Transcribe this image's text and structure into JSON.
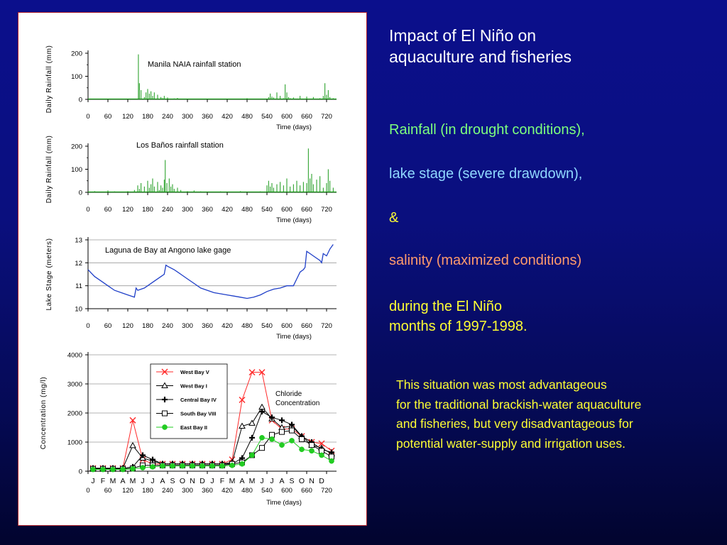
{
  "slide": {
    "title": "Impact of El Niño on\naquaculture and fisheries",
    "line_rainfall": "Rainfall (in drought conditions),",
    "line_lake": "lake stage (severe drawdown),",
    "line_amp": "&",
    "line_salinity": "salinity (maximized conditions)",
    "line_during": "during the El Niño\nmonths of  1997-1998.",
    "body_note": "This situation was most advantageous\nfor the traditional brackish-water aquaculture\nand fisheries, but very disadvantageous for\npotential water-supply and irrigation uses.",
    "colors": {
      "title": "#ffffff",
      "rainfall": "#7dff7d",
      "lake": "#8fd8ff",
      "yellow": "#ffff33",
      "salinity": "#ff9a6c",
      "panel_border": "#b0202a"
    }
  },
  "chart_data": [
    {
      "type": "line",
      "title": "Manila NAIA rainfall station",
      "ylabel": "Daily Rainfall (mm)",
      "xlabel": "Time (days)",
      "xlim": [
        0,
        750
      ],
      "ylim": [
        0,
        200
      ],
      "xticks": [
        "0",
        "60",
        "120",
        "180",
        "240",
        "300",
        "360",
        "420",
        "480",
        "540",
        "600",
        "660",
        "720"
      ],
      "yticks": [
        "0",
        "100",
        "200"
      ],
      "color": "#1a9a1a",
      "series": [
        {
          "x": [
            0,
            20,
            40,
            60,
            80,
            100,
            120,
            140,
            150,
            152,
            155,
            160,
            170,
            175,
            180,
            185,
            190,
            195,
            200,
            210,
            220,
            225,
            230,
            240,
            250,
            260,
            270,
            280,
            300,
            320,
            340,
            360,
            380,
            400,
            420,
            440,
            460,
            480,
            500,
            520,
            540,
            545,
            550,
            555,
            560,
            570,
            580,
            590,
            595,
            600,
            605,
            610,
            620,
            640,
            660,
            680,
            700,
            710,
            715,
            720,
            725,
            730,
            740
          ],
          "y": [
            0,
            0,
            1,
            0,
            2,
            0,
            1,
            0,
            3,
            195,
            70,
            40,
            10,
            30,
            45,
            25,
            35,
            15,
            30,
            20,
            10,
            5,
            15,
            8,
            2,
            4,
            6,
            2,
            1,
            3,
            0,
            2,
            1,
            0,
            0,
            2,
            1,
            5,
            3,
            1,
            2,
            10,
            25,
            12,
            8,
            30,
            15,
            5,
            65,
            30,
            10,
            5,
            8,
            15,
            12,
            10,
            5,
            15,
            70,
            20,
            40,
            10,
            5
          ]
        }
      ]
    },
    {
      "type": "line",
      "title": "Los Baños rainfall station",
      "ylabel": "Daily Rainfall (mm)",
      "xlabel": "Time (days)",
      "xlim": [
        0,
        750
      ],
      "ylim": [
        0,
        200
      ],
      "xticks": [
        "0",
        "60",
        "120",
        "180",
        "240",
        "300",
        "360",
        "420",
        "480",
        "540",
        "600",
        "660",
        "720"
      ],
      "yticks": [
        "0",
        "100",
        "200"
      ],
      "color": "#1a9a1a",
      "series": [
        {
          "x": [
            0,
            20,
            40,
            60,
            80,
            100,
            120,
            140,
            150,
            155,
            160,
            170,
            180,
            185,
            190,
            195,
            200,
            210,
            215,
            220,
            225,
            230,
            233,
            238,
            245,
            250,
            255,
            260,
            270,
            280,
            300,
            320,
            340,
            360,
            380,
            400,
            420,
            440,
            460,
            480,
            500,
            520,
            540,
            545,
            550,
            555,
            560,
            570,
            580,
            590,
            600,
            610,
            620,
            630,
            640,
            650,
            660,
            665,
            670,
            675,
            680,
            690,
            700,
            710,
            720,
            725,
            730,
            740
          ],
          "y": [
            2,
            5,
            3,
            8,
            4,
            2,
            5,
            10,
            30,
            15,
            40,
            25,
            50,
            20,
            35,
            60,
            25,
            45,
            10,
            30,
            20,
            55,
            140,
            40,
            60,
            25,
            35,
            15,
            20,
            10,
            5,
            8,
            4,
            3,
            2,
            4,
            2,
            3,
            5,
            2,
            3,
            4,
            30,
            50,
            25,
            40,
            20,
            35,
            45,
            30,
            60,
            25,
            35,
            50,
            30,
            45,
            40,
            190,
            60,
            80,
            35,
            55,
            70,
            20,
            40,
            100,
            50,
            20
          ]
        }
      ]
    },
    {
      "type": "line",
      "title": "Laguna de Bay at Angono lake gage",
      "ylabel": "Lake Stage (meters)",
      "xlabel": "Time (days)",
      "xlim": [
        0,
        750
      ],
      "ylim": [
        10,
        13
      ],
      "xticks": [
        "0",
        "60",
        "120",
        "180",
        "240",
        "300",
        "360",
        "420",
        "480",
        "540",
        "600",
        "660",
        "720"
      ],
      "yticks": [
        "10",
        "11",
        "12",
        "13"
      ],
      "color": "#1f3fc8",
      "series": [
        {
          "x": [
            0,
            20,
            40,
            60,
            80,
            100,
            120,
            140,
            145,
            150,
            170,
            180,
            200,
            220,
            230,
            235,
            240,
            260,
            280,
            300,
            320,
            340,
            360,
            380,
            400,
            420,
            440,
            460,
            480,
            500,
            520,
            540,
            560,
            580,
            600,
            620,
            630,
            640,
            650,
            655,
            660,
            670,
            680,
            690,
            700,
            705,
            710,
            720,
            730,
            740
          ],
          "y": [
            11.7,
            11.4,
            11.2,
            11.0,
            10.8,
            10.7,
            10.6,
            10.5,
            10.9,
            10.8,
            10.9,
            11.0,
            11.2,
            11.4,
            11.5,
            11.9,
            11.85,
            11.7,
            11.5,
            11.3,
            11.1,
            10.9,
            10.8,
            10.7,
            10.65,
            10.6,
            10.55,
            10.5,
            10.45,
            10.5,
            10.6,
            10.75,
            10.85,
            10.9,
            11.0,
            11.0,
            11.3,
            11.6,
            11.7,
            11.8,
            12.5,
            12.4,
            12.3,
            12.2,
            12.1,
            12.0,
            12.4,
            12.3,
            12.6,
            12.8
          ]
        }
      ]
    },
    {
      "type": "line",
      "title": "",
      "annotation": "Chloride\nConcentration",
      "ylabel": "Concentration (mg/l)",
      "xlabel": "Time (days)",
      "xlim": [
        0,
        750
      ],
      "ylim": [
        0,
        4000
      ],
      "xticks": [
        "0",
        "60",
        "120",
        "180",
        "240",
        "300",
        "360",
        "420",
        "480",
        "540",
        "600",
        "660",
        "720"
      ],
      "yticks": [
        "0",
        "1000",
        "2000",
        "3000",
        "4000"
      ],
      "months": [
        "J",
        "F",
        "M",
        "A",
        "M",
        "J",
        "J",
        "A",
        "S",
        "O",
        "N",
        "D",
        "J",
        "F",
        "M",
        "A",
        "M",
        "J",
        "J",
        "A",
        "S",
        "O",
        "N",
        "D"
      ],
      "x": [
        15,
        45,
        75,
        105,
        135,
        165,
        195,
        225,
        255,
        285,
        315,
        345,
        375,
        405,
        435,
        465,
        495,
        525,
        555,
        585,
        615,
        645,
        675,
        705,
        735
      ],
      "series": [
        {
          "name": "West Bay V",
          "color": "#ff2a2a",
          "marker": "x",
          "values": [
            100,
            100,
            100,
            100,
            1750,
            400,
            250,
            250,
            250,
            250,
            250,
            250,
            250,
            250,
            400,
            2450,
            3400,
            3400,
            1750,
            1450,
            1450,
            1200,
            1000,
            950,
            700
          ]
        },
        {
          "name": "West Bay I",
          "color": "#000000",
          "marker": "triangle",
          "values": [
            100,
            100,
            100,
            100,
            880,
            450,
            350,
            250,
            250,
            250,
            250,
            250,
            250,
            250,
            300,
            1550,
            1650,
            2200,
            1800,
            1500,
            1550,
            1200,
            900,
            800,
            600
          ]
        },
        {
          "name": "Central Bay IV",
          "color": "#000000",
          "marker": "plus",
          "values": [
            100,
            100,
            100,
            100,
            150,
            550,
            400,
            250,
            250,
            250,
            250,
            250,
            250,
            250,
            250,
            450,
            1150,
            2050,
            1850,
            1750,
            1600,
            1200,
            1000,
            750,
            650
          ]
        },
        {
          "name": "South Bay VIII",
          "color": "#000000",
          "marker": "square",
          "values": [
            80,
            80,
            80,
            80,
            100,
            200,
            200,
            200,
            200,
            200,
            200,
            200,
            200,
            200,
            250,
            300,
            550,
            800,
            1250,
            1350,
            1400,
            1100,
            900,
            700,
            500
          ]
        },
        {
          "name": "East Bay II",
          "color": "#22cc22",
          "marker": "circle",
          "values": [
            60,
            60,
            60,
            60,
            80,
            120,
            150,
            180,
            180,
            180,
            180,
            180,
            180,
            180,
            200,
            250,
            550,
            1150,
            1100,
            900,
            1050,
            750,
            700,
            550,
            350
          ]
        }
      ]
    }
  ]
}
